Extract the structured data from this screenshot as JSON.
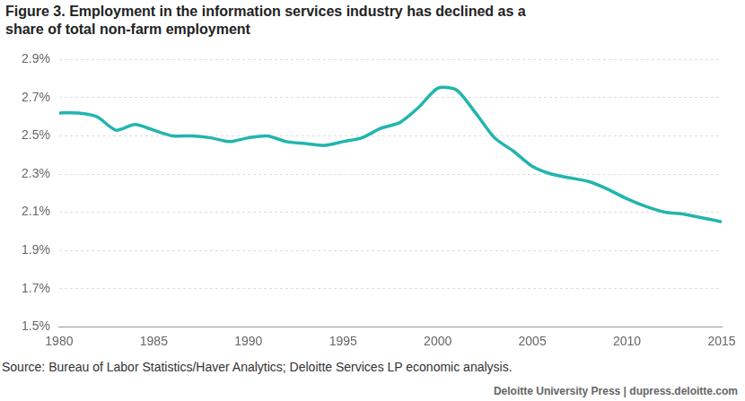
{
  "chart_data": {
    "type": "line",
    "title": "Figure 3. Employment in the information services industry has declined as a share of total non-farm employment",
    "source": "Source: Bureau of Labor Statistics/Haver Analytics; Deloitte Services LP economic analysis.",
    "footer": "Deloitte University Press  |  dupress.deloitte.com",
    "x": [
      1980,
      1981,
      1982,
      1983,
      1984,
      1985,
      1986,
      1987,
      1988,
      1989,
      1990,
      1991,
      1992,
      1993,
      1994,
      1995,
      1996,
      1997,
      1998,
      1999,
      2000,
      2001,
      2002,
      2003,
      2004,
      2005,
      2006,
      2007,
      2008,
      2009,
      2010,
      2011,
      2012,
      2013,
      2014,
      2015
    ],
    "values": [
      2.62,
      2.62,
      2.6,
      2.53,
      2.56,
      2.53,
      2.5,
      2.5,
      2.49,
      2.47,
      2.49,
      2.5,
      2.47,
      2.46,
      2.45,
      2.47,
      2.49,
      2.54,
      2.57,
      2.65,
      2.75,
      2.74,
      2.62,
      2.49,
      2.42,
      2.34,
      2.3,
      2.28,
      2.26,
      2.22,
      2.17,
      2.13,
      2.1,
      2.09,
      2.07,
      2.05
    ],
    "color": "#22b5ae",
    "xlim": [
      1980,
      2015
    ],
    "xticks": [
      1980,
      1985,
      1990,
      1995,
      2000,
      2005,
      2010,
      2015
    ],
    "ylim": [
      1.5,
      2.9
    ],
    "yticks": [
      {
        "value": 1.5,
        "label": "1.5%"
      },
      {
        "value": 1.7,
        "label": "1.7%"
      },
      {
        "value": 1.9,
        "label": "1.9%"
      },
      {
        "value": 2.1,
        "label": "2.1%"
      },
      {
        "value": 2.3,
        "label": "2.3%"
      },
      {
        "value": 2.5,
        "label": "2.5%"
      },
      {
        "value": 2.7,
        "label": "2.7%"
      },
      {
        "value": 2.9,
        "label": "2.9%"
      }
    ],
    "grid": true
  }
}
